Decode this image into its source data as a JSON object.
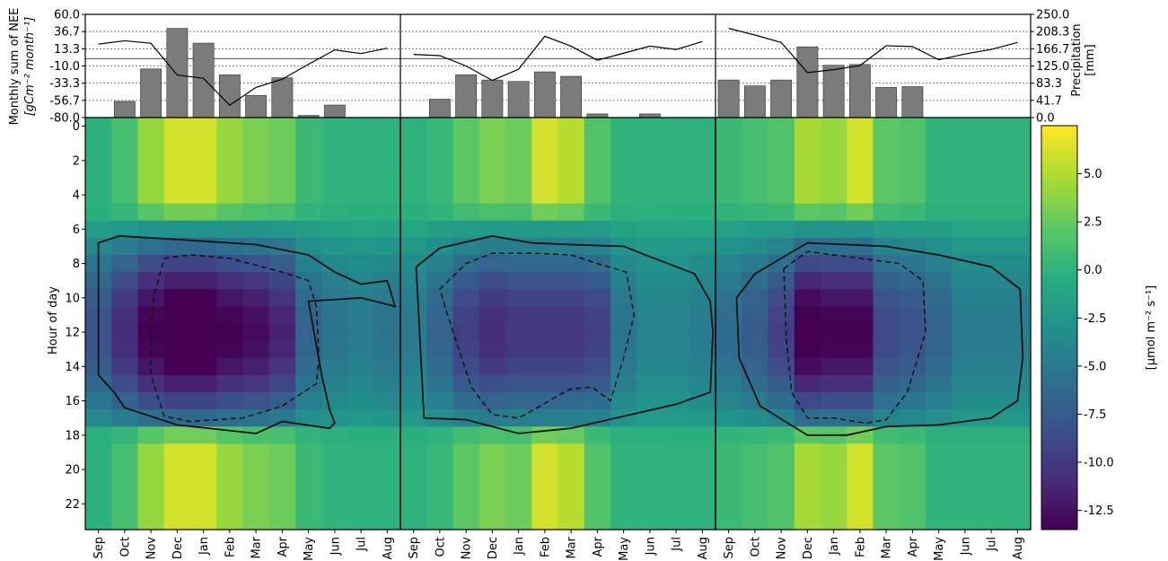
{
  "chart_data": {
    "type": "heatmap",
    "layout": "three panels of monthly bars (NEE) and precipitation line above a month x hour-of-day heatmap, with a shared colorbar",
    "months": [
      "Sep",
      "Oct",
      "Nov",
      "Dec",
      "Jan",
      "Feb",
      "Mar",
      "Apr",
      "May",
      "Jun",
      "Jul",
      "Aug"
    ],
    "top": {
      "left_axis": {
        "label_line1": "Monthly sum of NEE",
        "label_line2": "[gCm⁻² month⁻¹]",
        "ticks": [
          "60.0",
          "36.7",
          "13.3",
          "-10.0",
          "-33.3",
          "-56.7",
          "-80.0"
        ],
        "range": [
          -80,
          60
        ]
      },
      "right_axis": {
        "label_line1": "Precipitation",
        "label_line2": "[mm]",
        "ticks": [
          "250.0",
          "208.3",
          "166.7",
          "125.0",
          "83.3",
          "41.7",
          "0.0"
        ],
        "range": [
          0,
          250
        ]
      },
      "bar_color": "#7b7b7b",
      "panels": [
        {
          "nee": [
            -80,
            -58,
            -14,
            41,
            21,
            -22,
            -50,
            -26,
            -77,
            -63,
            -80,
            -80
          ],
          "precip": [
            178,
            186,
            180,
            103,
            95,
            30,
            73,
            93,
            129,
            164,
            155,
            168
          ]
        },
        {
          "nee": [
            -80,
            -55,
            -22,
            -29,
            -31,
            -18,
            -24,
            -75,
            -80,
            -75,
            -80,
            -80
          ],
          "precip": [
            153,
            150,
            125,
            90,
            117,
            197,
            173,
            139,
            156,
            173,
            165,
            184
          ]
        },
        {
          "nee": [
            -29,
            -37,
            -29,
            16,
            -9,
            -8,
            -39,
            -38,
            -80,
            -80,
            -80,
            -80
          ],
          "precip": [
            216,
            200,
            182,
            109,
            116,
            126,
            174,
            172,
            140,
            154,
            165,
            182
          ]
        }
      ]
    },
    "heatmap": {
      "ylabel": "Hour of day",
      "yticks": [
        "0",
        "2",
        "4",
        "6",
        "8",
        "10",
        "12",
        "14",
        "16",
        "18",
        "20",
        "22"
      ],
      "hours": 24,
      "colormap": "viridis",
      "colorbar": {
        "label": "[μmol m⁻² s⁻¹]",
        "ticks": [
          "5.0",
          "2.5",
          "0.0",
          "-2.5",
          "-5.0",
          "-7.5",
          "-10.0",
          "-12.5"
        ],
        "range": [
          -13.5,
          7.5
        ]
      },
      "panels": [
        {
          "amp": [
            0.55,
            0.75,
            0.95,
            1.05,
            1.05,
            0.95,
            0.9,
            0.8,
            0.45,
            0.35,
            0.3,
            0.35
          ],
          "day_max": 13.5,
          "night": [
            0.2,
            1.5,
            4.5,
            6.5,
            6.5,
            4.5,
            3.5,
            3.0,
            1.0,
            0.5,
            0.3,
            0.3
          ]
        },
        {
          "amp": [
            0.3,
            0.45,
            0.65,
            0.75,
            0.7,
            0.7,
            0.7,
            0.65,
            0.35,
            0.25,
            0.25,
            0.3
          ],
          "day_max": 13.5,
          "night": [
            0.3,
            0.8,
            2.5,
            3.5,
            3.0,
            6.5,
            5.5,
            2.0,
            0.5,
            0.4,
            0.3,
            0.3
          ]
        },
        {
          "amp": [
            0.4,
            0.5,
            0.65,
            1.0,
            0.95,
            0.95,
            0.6,
            0.55,
            0.45,
            0.3,
            0.3,
            0.3
          ],
          "day_max": 13.5,
          "night": [
            1.0,
            1.5,
            2.0,
            5.0,
            4.5,
            6.5,
            2.5,
            2.0,
            0.5,
            0.5,
            0.5,
            0.5
          ]
        }
      ],
      "contours": [
        {
          "solid": [
            [
              0,
              6.8
            ],
            [
              0.8,
              6.4
            ],
            [
              3,
              6.6
            ],
            [
              6,
              6.9
            ],
            [
              8,
              7.5
            ],
            [
              9,
              8.5
            ],
            [
              10,
              9.2
            ],
            [
              11,
              9.0
            ],
            [
              11.3,
              10.5
            ],
            [
              10,
              10.0
            ],
            [
              8,
              10.2
            ],
            [
              8.5,
              14.5
            ],
            [
              8.8,
              16.5
            ],
            [
              9,
              17.3
            ],
            [
              8.8,
              17.6
            ],
            [
              7,
              17.2
            ],
            [
              6,
              17.9
            ],
            [
              3,
              17.4
            ],
            [
              1,
              16.4
            ],
            [
              0.6,
              15.5
            ],
            [
              0,
              14.5
            ]
          ],
          "dashed": [
            [
              2.5,
              7.7
            ],
            [
              3.5,
              7.5
            ],
            [
              5,
              7.7
            ],
            [
              7,
              8.5
            ],
            [
              8,
              9.0
            ],
            [
              8.3,
              10.5
            ],
            [
              8.4,
              13.5
            ],
            [
              8.3,
              15.0
            ],
            [
              7,
              16.3
            ],
            [
              5.5,
              17.0
            ],
            [
              3.5,
              17.2
            ],
            [
              2.5,
              16.9
            ],
            [
              2,
              14.5
            ],
            [
              2.0,
              12.0
            ],
            [
              2.1,
              10.0
            ]
          ]
        },
        {
          "solid": [
            [
              0.1,
              8.2
            ],
            [
              1,
              7.1
            ],
            [
              3,
              6.4
            ],
            [
              4.5,
              6.8
            ],
            [
              6,
              6.9
            ],
            [
              8,
              7.0
            ],
            [
              9,
              7.6
            ],
            [
              10.7,
              8.6
            ],
            [
              11.3,
              10.2
            ],
            [
              11.4,
              12
            ],
            [
              11.3,
              15.5
            ],
            [
              10,
              16.2
            ],
            [
              8,
              16.9
            ],
            [
              6,
              17.6
            ],
            [
              4,
              17.9
            ],
            [
              2,
              17.1
            ],
            [
              0.4,
              17.0
            ]
          ],
          "dashed": [
            [
              1,
              9.5
            ],
            [
              2,
              8.0
            ],
            [
              3,
              7.4
            ],
            [
              4.6,
              7.4
            ],
            [
              6,
              7.5
            ],
            [
              7,
              8.0
            ],
            [
              8.1,
              8.5
            ],
            [
              8.4,
              11
            ],
            [
              8.0,
              13.5
            ],
            [
              7.5,
              16.0
            ],
            [
              6.8,
              15.2
            ],
            [
              6,
              15.3
            ],
            [
              5.5,
              15.7
            ],
            [
              4.6,
              16.5
            ],
            [
              4,
              17.0
            ],
            [
              3,
              16.8
            ],
            [
              2.2,
              15.2
            ],
            [
              1.3,
              11.0
            ]
          ]
        },
        {
          "solid": [
            [
              0.3,
              10.0
            ],
            [
              1,
              8.6
            ],
            [
              3,
              6.8
            ],
            [
              4.5,
              6.9
            ],
            [
              6,
              7.0
            ],
            [
              8,
              7.5
            ],
            [
              10,
              8.2
            ],
            [
              11.1,
              9.5
            ],
            [
              11.2,
              13.5
            ],
            [
              11.0,
              16.0
            ],
            [
              10,
              17.0
            ],
            [
              8,
              17.4
            ],
            [
              6,
              17.5
            ],
            [
              4.5,
              18.0
            ],
            [
              3,
              18.0
            ],
            [
              1.2,
              16.3
            ],
            [
              0.4,
              13.5
            ]
          ],
          "dashed": [
            [
              2.1,
              8.3
            ],
            [
              3,
              7.3
            ],
            [
              5,
              7.7
            ],
            [
              6.5,
              8.0
            ],
            [
              7.4,
              9.0
            ],
            [
              7.5,
              12.0
            ],
            [
              6.8,
              15.5
            ],
            [
              6,
              17.1
            ],
            [
              5.2,
              17.3
            ],
            [
              4,
              17.0
            ],
            [
              3,
              17.0
            ],
            [
              2.4,
              15.5
            ],
            [
              2.2,
              12.5
            ]
          ]
        }
      ]
    }
  }
}
